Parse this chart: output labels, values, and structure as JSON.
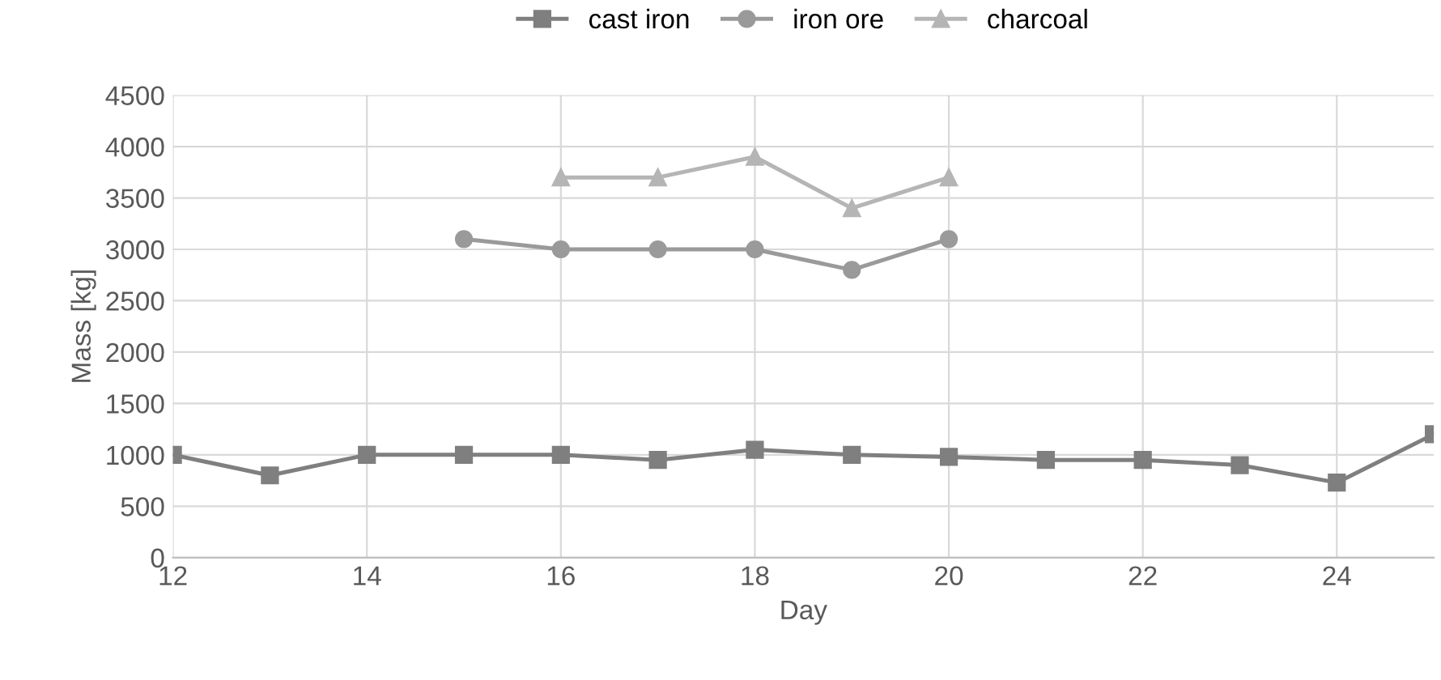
{
  "chart_data": {
    "type": "line",
    "xlabel": "Day",
    "ylabel": "Mass [kg]",
    "xlim": [
      12,
      25
    ],
    "xticks": [
      12,
      14,
      16,
      18,
      20,
      22,
      24
    ],
    "ylim": [
      0,
      4500
    ],
    "yticks": [
      0,
      500,
      1000,
      1500,
      2000,
      2500,
      3000,
      3500,
      4000,
      4500
    ],
    "grid": true,
    "legend": "top",
    "series": [
      {
        "name": "cast iron",
        "color": "#7f7f7f",
        "marker": "square",
        "x": [
          12,
          13,
          14,
          15,
          16,
          17,
          18,
          19,
          20,
          21,
          22,
          23,
          24,
          25
        ],
        "values": [
          1000,
          800,
          1000,
          1000,
          1000,
          950,
          1050,
          1000,
          980,
          950,
          950,
          900,
          730,
          1200
        ]
      },
      {
        "name": "iron ore",
        "color": "#9a9a9a",
        "marker": "circle",
        "x": [
          15,
          16,
          17,
          18,
          19,
          20
        ],
        "values": [
          3100,
          3000,
          3000,
          3000,
          2800,
          3100
        ]
      },
      {
        "name": "charcoal",
        "color": "#b5b5b5",
        "marker": "triangle",
        "x": [
          16,
          17,
          18,
          19,
          20
        ],
        "values": [
          3700,
          3700,
          3900,
          3400,
          3700
        ]
      }
    ]
  }
}
